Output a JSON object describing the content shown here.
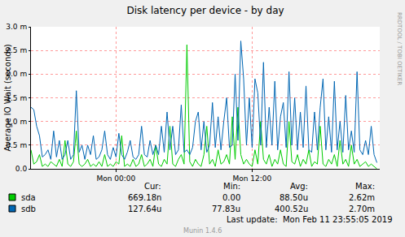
{
  "chart_data": {
    "type": "line",
    "title": "Disk latency per device - by day",
    "y_label": "Average IO Wait (seconds)",
    "x": [
      -7.5,
      -7.25,
      -7,
      -6.75,
      -6.5,
      -6.25,
      -6,
      -5.75,
      -5.5,
      -5.25,
      -5,
      -4.75,
      -4.5,
      -4.25,
      -4,
      -3.75,
      -3.5,
      -3.25,
      -3,
      -2.75,
      -2.5,
      -2.25,
      -2,
      -1.75,
      -1.5,
      -1.25,
      -1,
      -0.75,
      -0.5,
      -0.25,
      0,
      0.25,
      0.5,
      0.75,
      1,
      1.25,
      1.5,
      1.75,
      2,
      2.25,
      2.5,
      2.75,
      3,
      3.25,
      3.5,
      3.75,
      4,
      4.25,
      4.5,
      4.75,
      5,
      5.25,
      5.5,
      5.75,
      6,
      6.25,
      6.5,
      6.75,
      7,
      7.25,
      7.5,
      7.75,
      8,
      8.25,
      8.5,
      8.75,
      9,
      9.25,
      9.5,
      9.75,
      10,
      10.25,
      10.5,
      10.75,
      11,
      11.25,
      11.5,
      11.75,
      12,
      12.25,
      12.5,
      12.75,
      13,
      13.25,
      13.5,
      13.75,
      14,
      14.25,
      14.5,
      14.75,
      15,
      15.25,
      15.5,
      15.75,
      16,
      16.25,
      16.5,
      16.75,
      17,
      17.25,
      17.5,
      17.75,
      18,
      18.25,
      18.5,
      18.75,
      19,
      19.25,
      19.5,
      19.75,
      20,
      20.25,
      20.5,
      20.75,
      21,
      21.25,
      21.5,
      21.75,
      22,
      22.25,
      22.5,
      22.75,
      23
    ],
    "xlim": [
      -7.5,
      23.25
    ],
    "xticks": [
      {
        "value": 0,
        "label": "Mon 00:00"
      },
      {
        "value": 12,
        "label": "Mon 12:00"
      }
    ],
    "ylim": [
      0,
      0.003
    ],
    "yticks": [
      {
        "value": 0,
        "label": "0.0"
      },
      {
        "value": 0.0005,
        "label": "0.5 m"
      },
      {
        "value": 0.001,
        "label": "1.0 m"
      },
      {
        "value": 0.0015,
        "label": "1.5 m"
      },
      {
        "value": 0.002,
        "label": "2.0 m"
      },
      {
        "value": 0.0025,
        "label": "2.5 m"
      },
      {
        "value": 0.003,
        "label": "3.0 m"
      }
    ],
    "grid": true,
    "stats_columns": [
      "Cur:",
      "Min:",
      "Avg:",
      "Max:"
    ],
    "series": [
      {
        "name": "sda",
        "color": "#00CC00",
        "stats": [
          "669.18n",
          "0.00",
          "88.50u",
          "2.62m"
        ],
        "values": [
          0.0004,
          0.0001,
          0.00015,
          0.0003,
          5e-05,
          0.0001,
          5e-05,
          0.00015,
          0.0001,
          5e-05,
          0.0002,
          5e-05,
          0.0006,
          0.0001,
          5e-05,
          0.00015,
          0.0008,
          0.0001,
          5e-05,
          0.0001,
          0.0002,
          5e-05,
          0.0001,
          5e-05,
          0.00015,
          5e-05,
          0.0003,
          5e-05,
          0.0001,
          5e-05,
          0.00015,
          0.0001,
          0.0007,
          5e-05,
          0.0001,
          5e-05,
          0.0002,
          5e-05,
          0.0001,
          0.0003,
          5e-05,
          0.0001,
          0.0002,
          5e-05,
          0.0005,
          0.0001,
          5e-05,
          0.0002,
          0.0001,
          0.0009,
          0.0001,
          5e-05,
          0.0002,
          0.0003,
          0.0001,
          0.00262,
          0.00015,
          5e-05,
          0.0002,
          0.0001,
          5e-05,
          0.0003,
          0.0009,
          0.0001,
          0.0002,
          5e-05,
          0.0004,
          0.0001,
          0.00015,
          0.0003,
          0.0001,
          0.0011,
          0.0002,
          0.0013,
          0.0003,
          0.0001,
          0.0002,
          0.0001,
          5e-05,
          0.0004,
          0.0001,
          0.001,
          0.0002,
          0.0001,
          0.0003,
          5e-05,
          0.0002,
          0.0001,
          0.0004,
          0.0001,
          5e-05,
          0.001,
          0.00015,
          0.0001,
          0.0003,
          5e-05,
          0.0002,
          0.0001,
          0.0004,
          5e-05,
          0.00015,
          0.0001,
          0.0009,
          0.0001,
          5e-05,
          0.0002,
          0.0001,
          0.0003,
          5e-05,
          0.0006,
          0.0001,
          0.0002,
          5e-05,
          0.0005,
          0.0001,
          0.0002,
          5e-05,
          0.0001,
          0.00015,
          5e-05,
          0.0001,
          5e-05,
          0
        ]
      },
      {
        "name": "sdb",
        "color": "#0066B3",
        "stats": [
          "127.64u",
          "77.83u",
          "400.52u",
          "2.70m"
        ],
        "values": [
          0.0013,
          0.00125,
          0.0009,
          0.0007,
          0.00025,
          0.0003,
          0.0004,
          0.0002,
          0.0008,
          0.00025,
          0.0006,
          0.0002,
          0.0003,
          0.0006,
          0.0002,
          0.0003,
          0.00165,
          0.00035,
          0.0005,
          0.0002,
          0.0005,
          0.0003,
          0.0007,
          0.0002,
          0.00025,
          0.0004,
          0.0008,
          0.0003,
          0.0002,
          0.00045,
          0.00025,
          0.00075,
          0.0003,
          0.0002,
          0.00035,
          0.0006,
          0.00025,
          0.0002,
          0.0003,
          0.0009,
          0.0003,
          0.00025,
          0.0006,
          0.0003,
          0.0005,
          0.0003,
          0.0009,
          0.00035,
          0.0012,
          0.0004,
          0.0009,
          0.0003,
          0.0004,
          0.00135,
          0.00035,
          0.0004,
          0.0003,
          0.00045,
          0.001,
          0.0012,
          0.0004,
          0.001,
          0.00035,
          0.0005,
          0.0014,
          0.00045,
          0.0011,
          0.0004,
          0.001,
          0.0015,
          0.00045,
          0.0005,
          0.002,
          0.0006,
          0.0027,
          0.0019,
          0.0005,
          0.0015,
          0.00045,
          0.0019,
          0.0016,
          0.0005,
          0.00225,
          0.00045,
          0.0013,
          0.0005,
          0.00185,
          0.0004,
          0.0011,
          0.0014,
          0.00045,
          0.00205,
          0.0005,
          0.0015,
          0.0004,
          0.0012,
          0.00045,
          0.00175,
          0.0004,
          0.00035,
          0.0012,
          0.0004,
          0.0013,
          0.0019,
          0.0004,
          0.0011,
          0.00035,
          0.00185,
          0.0004,
          0.001,
          0.00035,
          0.00155,
          0.0004,
          0.0008,
          0.00035,
          0.00205,
          0.0004,
          0.0003,
          0.0006,
          0.0003,
          0.0009,
          0.0003,
          0.00013
        ]
      }
    ],
    "footer": "Last update:  Mon Feb 11 23:55:05 2019",
    "version": "Munin 1.4.6",
    "watermark": "RRDTOOL / TOBI OETIKER"
  }
}
